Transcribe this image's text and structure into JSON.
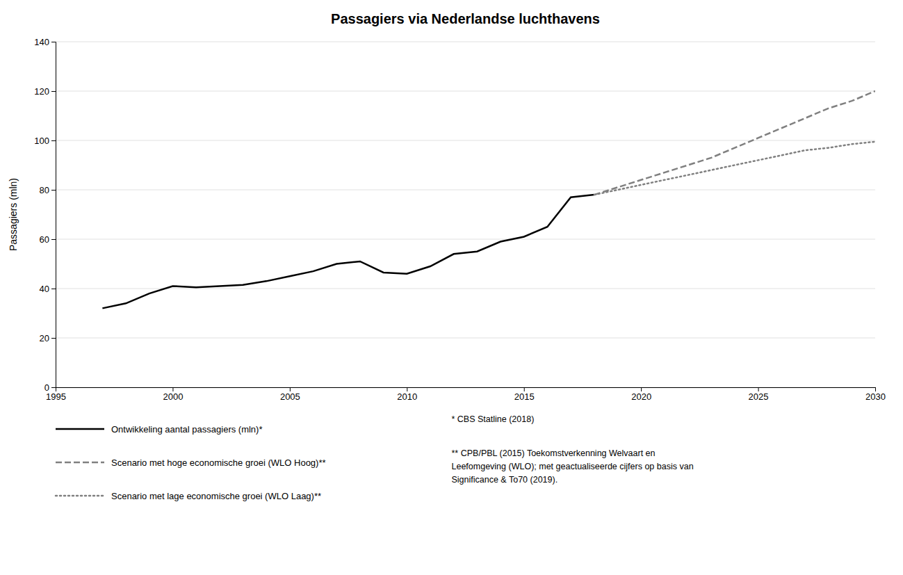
{
  "chart_data": {
    "type": "line",
    "title": "Passagiers via Nederlandse luchthavens",
    "y_label": "Passagiers (mln)",
    "xlim": [
      1995,
      2030
    ],
    "ylim": [
      0,
      140
    ],
    "xticks": [
      1995,
      2000,
      2005,
      2010,
      2015,
      2020,
      2025,
      2030
    ],
    "yticks": [
      0,
      20,
      40,
      60,
      80,
      100,
      120,
      140
    ],
    "grid": true,
    "series": [
      {
        "name": "Ontwikkeling aantal passagiers (mln)*",
        "color": "#000000",
        "line_style": "solid",
        "x": [
          1997,
          1998,
          1999,
          2000,
          2001,
          2002,
          2003,
          2004,
          2005,
          2006,
          2007,
          2008,
          2009,
          2010,
          2011,
          2012,
          2013,
          2014,
          2015,
          2016,
          2017,
          2018
        ],
        "values": [
          32,
          34,
          38,
          41,
          40.5,
          41,
          41.5,
          43,
          45,
          47,
          50,
          51,
          46.5,
          46,
          49,
          54,
          55,
          59,
          61,
          65,
          77,
          78
        ]
      },
      {
        "name": "Scenario met hoge economische groei (WLO Hoog)**",
        "color": "#808080",
        "line_style": "dashed",
        "x": [
          2018,
          2019,
          2020,
          2021,
          2022,
          2023,
          2024,
          2025,
          2026,
          2027,
          2028,
          2029,
          2030
        ],
        "values": [
          78,
          81,
          84,
          87,
          90,
          93,
          97,
          101,
          105,
          109,
          113,
          116,
          120
        ]
      },
      {
        "name": "Scenario met lage economische groei (WLO Laag)**",
        "color": "#808080",
        "line_style": "dotted",
        "x": [
          2018,
          2019,
          2020,
          2021,
          2022,
          2023,
          2024,
          2025,
          2026,
          2027,
          2028,
          2029,
          2030
        ],
        "values": [
          78,
          80,
          82,
          84,
          86,
          88,
          90,
          92,
          94,
          96,
          97,
          98.5,
          99.5
        ]
      }
    ],
    "annotations": [
      "* CBS Statline (2018)",
      "** CPB/PBL (2015) Toekomstverkenning Welvaart en\nLeefomgeving (WLO); met geactualiseerde cijfers op basis van\nSignificance & To70 (2019)."
    ]
  }
}
